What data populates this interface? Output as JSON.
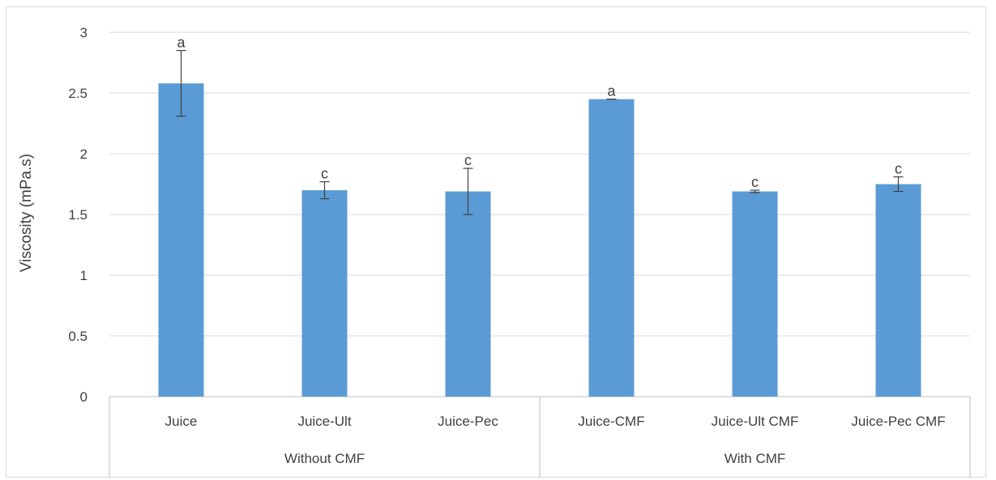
{
  "chart_data": {
    "type": "bar",
    "title": "",
    "ylabel": "Viscosity (mPa.s)",
    "xlabel": "",
    "ylim": [
      0,
      3
    ],
    "yticks": [
      "0",
      "0.5",
      "1",
      "1.5",
      "2",
      "2.5",
      "3"
    ],
    "grid": true,
    "legend": "none",
    "bar_color": "#5b9bd5",
    "categories": [
      "Juice",
      "Juice-Ult",
      "Juice-Pec",
      "Juice-CMF",
      "Juice-Ult CMF",
      "Juice-Pec CMF"
    ],
    "groups": [
      {
        "label": "Without CMF",
        "categories": [
          "Juice",
          "Juice-Ult",
          "Juice-Pec"
        ]
      },
      {
        "label": "With CMF",
        "categories": [
          "Juice-CMF",
          "Juice-Ult CMF",
          "Juice-Pec CMF"
        ]
      }
    ],
    "values": [
      2.58,
      1.7,
      1.69,
      2.45,
      1.69,
      1.75
    ],
    "errors": [
      0.27,
      0.07,
      0.19,
      0.0,
      0.01,
      0.06
    ],
    "significance_labels": [
      "a",
      "c",
      "c",
      "a",
      "c",
      "c"
    ]
  }
}
